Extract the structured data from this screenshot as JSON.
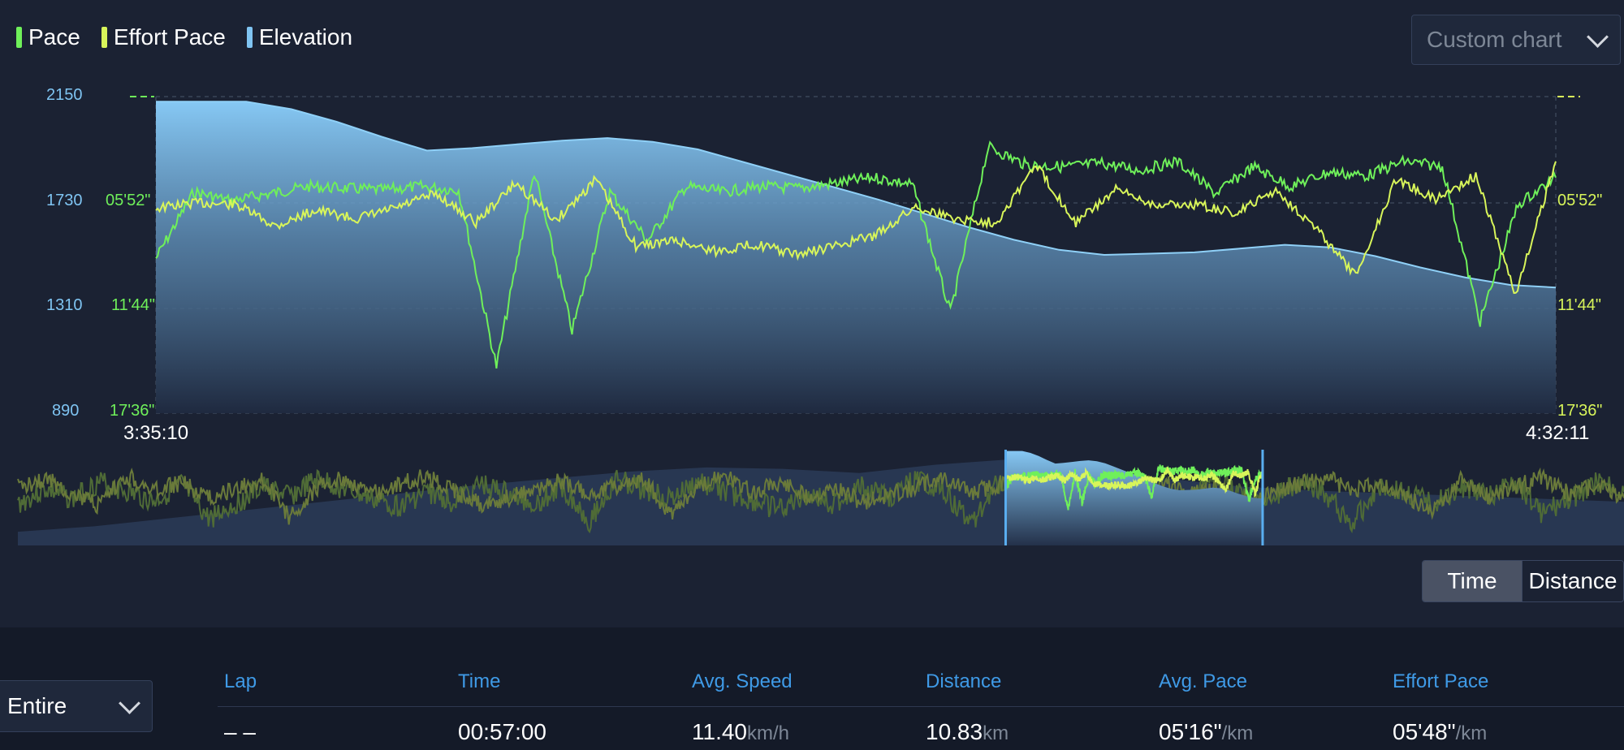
{
  "legend": [
    {
      "label": "Pace",
      "color": "#6ff05a"
    },
    {
      "label": "Effort Pace",
      "color": "#d8f55a"
    },
    {
      "label": "Elevation",
      "color": "#7fc4f2"
    }
  ],
  "custom_chart": {
    "label": "Custom chart"
  },
  "chart_data": {
    "type": "area",
    "x_start": "3:35:10",
    "x_end": "4:32:11",
    "elevation_axis": {
      "ticks": [
        "2150",
        "1730",
        "1310",
        "890"
      ],
      "range": [
        890,
        2150
      ]
    },
    "pace_axis": {
      "ticks": [
        "05'52\"",
        "11'44\"",
        "17'36\""
      ]
    },
    "series": [
      {
        "name": "Elevation",
        "color": "#7fc4f2",
        "values": [
          2130,
          2130,
          2130,
          2100,
          2050,
          1990,
          1935,
          1945,
          1960,
          1975,
          1985,
          1970,
          1940,
          1890,
          1840,
          1790,
          1740,
          1685,
          1630,
          1580,
          1540,
          1520,
          1525,
          1530,
          1545,
          1560,
          1550,
          1515,
          1470,
          1430,
          1400,
          1390
        ]
      },
      {
        "name": "Pace",
        "color": "#6ff05a",
        "values": [
          9.0,
          5.3,
          5.8,
          5.4,
          5.0,
          5.1,
          5.2,
          5.0,
          5.2,
          15.0,
          4.2,
          13.0,
          5.3,
          8.0,
          5.0,
          5.3,
          5.0,
          5.1,
          4.8,
          4.5,
          4.9,
          12.0,
          2.8,
          3.8,
          3.9,
          3.7,
          4.1,
          3.6,
          5.4,
          3.9,
          5.0,
          4.2,
          4.4,
          3.6,
          3.9,
          12.5,
          6.0,
          4.5
        ]
      },
      {
        "name": "Effort Pace",
        "color": "#d8f55a",
        "values": [
          6.2,
          5.9,
          6.0,
          7.2,
          6.3,
          6.8,
          6.2,
          5.4,
          7.0,
          4.8,
          6.9,
          4.6,
          8.3,
          8.0,
          8.6,
          8.2,
          8.8,
          8.3,
          7.7,
          6.1,
          6.8,
          7.0,
          3.8,
          7.0,
          5.2,
          6.0,
          6.0,
          6.5,
          5.2,
          7.3,
          10.0,
          4.6,
          5.7,
          4.4,
          11.0,
          3.6
        ]
      }
    ],
    "overview": {
      "window_start": 0.615,
      "window_end": 0.775
    }
  },
  "toggle": {
    "time": "Time",
    "distance": "Distance"
  },
  "lap_select": {
    "value": "Entire"
  },
  "table": {
    "headers": [
      "Lap",
      "Time",
      "Avg. Speed",
      "Distance",
      "Avg. Pace",
      "Effort Pace"
    ],
    "row": {
      "lap": "– –",
      "time": "00:57:00",
      "speed": "11.40",
      "speed_unit": "km/h",
      "distance": "10.83",
      "distance_unit": "km",
      "avg_pace": "05'16\"",
      "avg_pace_unit": "/km",
      "effort_pace": "05'48\"",
      "effort_pace_unit": "/km"
    }
  }
}
